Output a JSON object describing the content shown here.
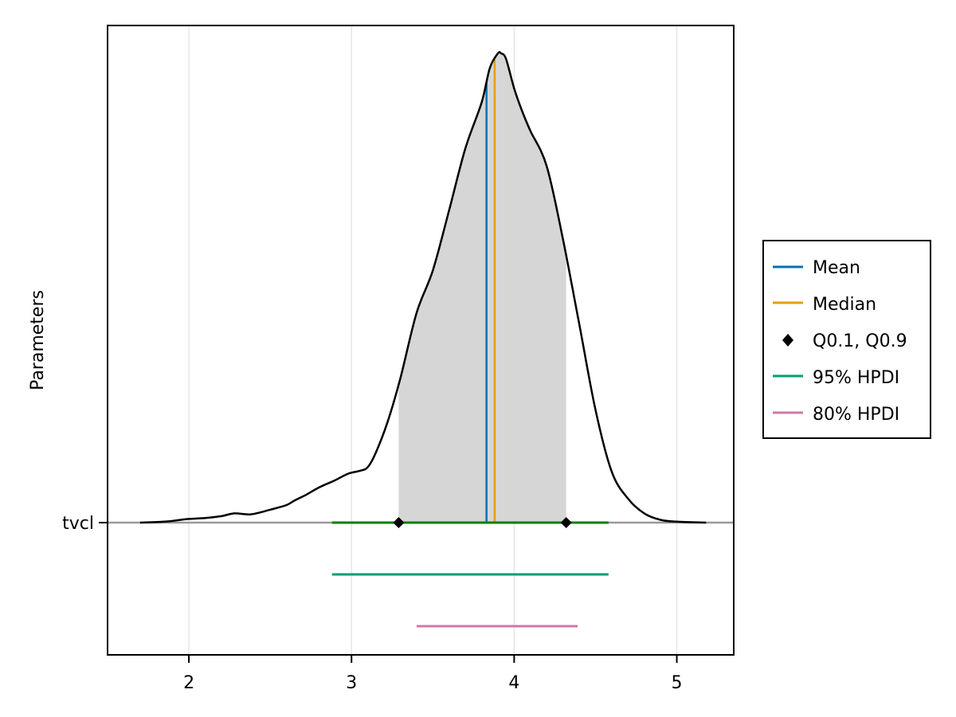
{
  "chart_data": {
    "type": "density",
    "ylabel": "Parameters",
    "xlim": [
      1.5,
      5.35
    ],
    "x_ticks": [
      "2",
      "3",
      "4",
      "5"
    ],
    "x_tick_values": [
      2,
      3,
      4,
      5
    ],
    "grid": true,
    "legend_position": "right",
    "parameter": "tvcl",
    "density": {
      "x": [
        1.7,
        1.85,
        1.95,
        2.0,
        2.1,
        2.2,
        2.28,
        2.38,
        2.5,
        2.6,
        2.65,
        2.72,
        2.8,
        2.9,
        2.98,
        3.05,
        3.1,
        3.15,
        3.22,
        3.3,
        3.4,
        3.5,
        3.6,
        3.7,
        3.8,
        3.85,
        3.9,
        3.92,
        3.95,
        4.0,
        4.05,
        4.1,
        4.2,
        4.3,
        4.4,
        4.5,
        4.6,
        4.7,
        4.8,
        4.9,
        5.0,
        5.18
      ],
      "y": [
        0.0,
        0.01,
        0.03,
        0.04,
        0.05,
        0.07,
        0.1,
        0.09,
        0.14,
        0.19,
        0.24,
        0.3,
        0.38,
        0.46,
        0.53,
        0.56,
        0.6,
        0.76,
        1.08,
        1.56,
        2.27,
        2.73,
        3.38,
        4.05,
        4.55,
        4.92,
        5.08,
        5.08,
        5.02,
        4.7,
        4.45,
        4.24,
        3.86,
        3.07,
        2.15,
        1.22,
        0.55,
        0.26,
        0.1,
        0.03,
        0.01,
        0.0
      ]
    },
    "shaded_interval": [
      3.29,
      4.32
    ],
    "mean": 3.83,
    "median": 3.88,
    "quantiles": [
      3.29,
      4.32
    ],
    "hpdi_95": [
      2.88,
      4.58
    ],
    "hpdi_80": [
      3.4,
      4.39
    ],
    "legend": [
      {
        "label": "Mean",
        "kind": "line",
        "color": "#0072b2"
      },
      {
        "label": "Median",
        "kind": "line",
        "color": "#e69f00"
      },
      {
        "label": "Q0.1, Q0.9",
        "kind": "marker",
        "color": "#000000"
      },
      {
        "label": "95% HPDI",
        "kind": "line",
        "color": "#009e73"
      },
      {
        "label": "80% HPDI",
        "kind": "line",
        "color": "#cc79a7"
      }
    ],
    "colors": {
      "mean": "#0072b2",
      "median": "#e69f00",
      "hpdi_95": "#009e73",
      "hpdi_80": "#cc79a7",
      "main_interval": "#008000",
      "shade": "#d6d6d6",
      "baseline": "#999999",
      "grid": "#e5e5e5"
    }
  }
}
